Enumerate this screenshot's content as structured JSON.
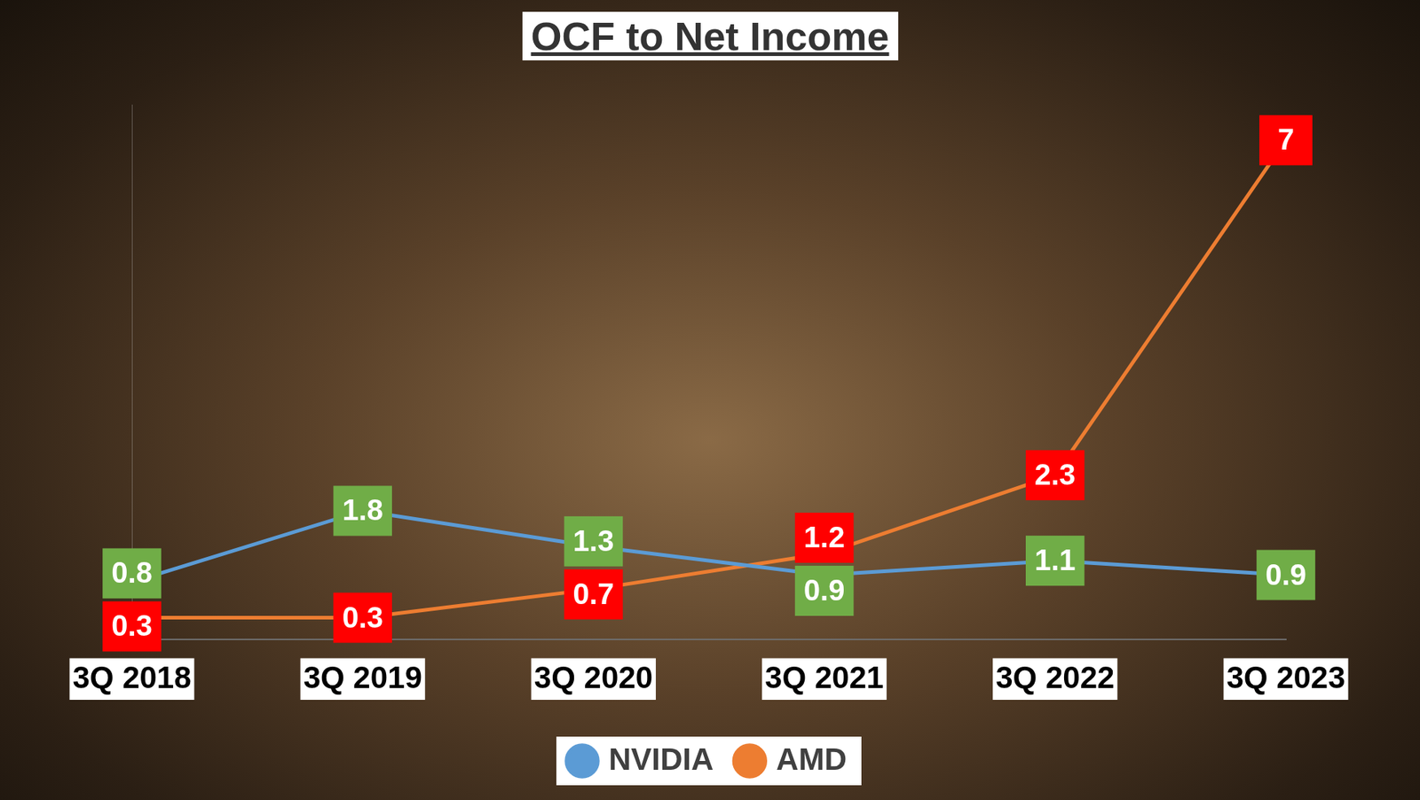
{
  "chart_data": {
    "type": "line",
    "title": "OCF to Net Income",
    "categories": [
      "3Q 2018",
      "3Q 2019",
      "3Q 2020",
      "3Q 2021",
      "3Q 2022",
      "3Q 2023"
    ],
    "series": [
      {
        "name": "NVIDIA",
        "color": "#5b9bd5",
        "values": [
          0.8,
          1.8,
          1.3,
          0.9,
          1.1,
          0.9
        ]
      },
      {
        "name": "AMD",
        "color": "#ed7d31",
        "values": [
          0.3,
          0.3,
          0.7,
          1.2,
          2.3,
          7
        ]
      }
    ],
    "ylim": [
      0,
      7.5
    ],
    "tick_labels": "x",
    "data_labels": true,
    "legend": "bottom",
    "grid": false
  }
}
